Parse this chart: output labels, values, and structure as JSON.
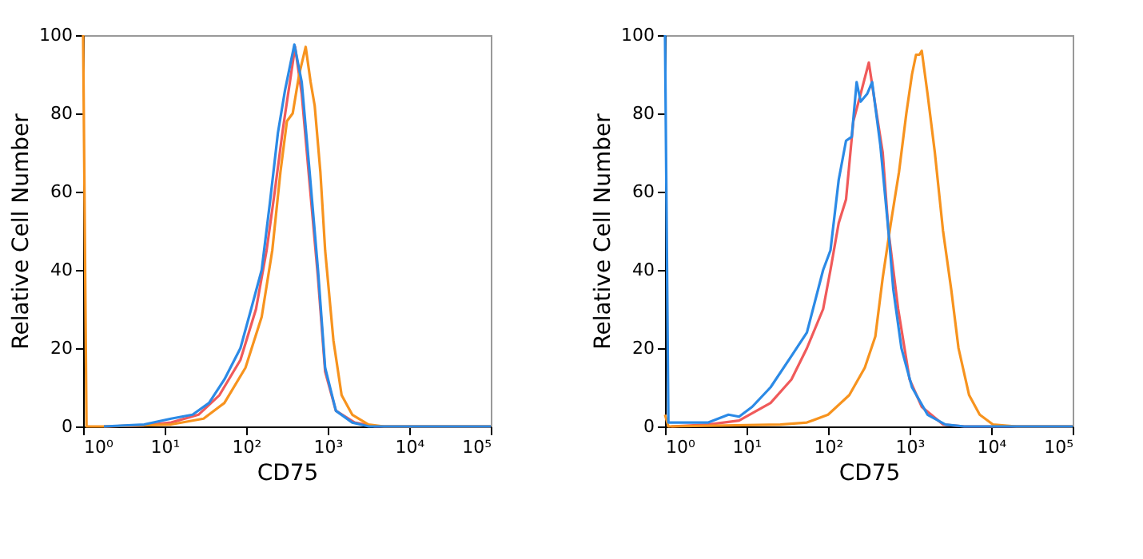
{
  "chart_data": [
    {
      "type": "line",
      "xlabel": "CD75",
      "ylabel": "Relative Cell Number",
      "log": "x",
      "grid": false,
      "legend": false,
      "marker": "none",
      "line_style": "solid",
      "xlim": [
        1,
        100000
      ],
      "ylim": [
        0,
        100
      ],
      "xticks": [
        {
          "value": 1,
          "label": "10⁰"
        },
        {
          "value": 10,
          "label": "10¹"
        },
        {
          "value": 100,
          "label": "10²"
        },
        {
          "value": 1000,
          "label": "10³"
        },
        {
          "value": 10000,
          "label": "10⁴"
        },
        {
          "value": 100000,
          "label": "10⁵"
        }
      ],
      "yticks": [
        0,
        20,
        40,
        60,
        80,
        100
      ],
      "series": [
        {
          "color": "#f05a5a",
          "x": [
            1.8,
            5.6,
            12,
            26,
            47,
            85,
            132,
            178,
            224,
            282,
            355,
            398,
            480,
            600,
            760,
            930,
            1260,
            2140,
            3800,
            100000
          ],
          "values": [
            0,
            0.3,
            1,
            3,
            8,
            17,
            30,
            45,
            60,
            76,
            90,
            97,
            85,
            62,
            38,
            14,
            4,
            1,
            0,
            0
          ]
        },
        {
          "color": "#f7931e",
          "x": [
            1,
            1.1,
            1.8,
            12,
            30,
            54,
            98,
            155,
            209,
            263,
            316,
            372,
            447,
            537,
            617,
            692,
            813,
            930,
            1175,
            1480,
            2000,
            3160,
            4900,
            100000
          ],
          "values": [
            100,
            0,
            0,
            0.5,
            2,
            6,
            15,
            28,
            45,
            65,
            78,
            80,
            90,
            97,
            88,
            82,
            65,
            45,
            22,
            8,
            3,
            0.5,
            0,
            0
          ]
        },
        {
          "color": "#2b8ae6",
          "x": [
            1.8,
            5.6,
            12,
            22,
            35,
            54,
            85,
            115,
            155,
            195,
            245,
            300,
            390,
            480,
            600,
            760,
            930,
            1260,
            2000,
            3200,
            100000
          ],
          "values": [
            0,
            0.5,
            2,
            3,
            6,
            12,
            20,
            30,
            40,
            57,
            75,
            86,
            97.6,
            88,
            65,
            40,
            15,
            4,
            1,
            0,
            0
          ]
        }
      ]
    },
    {
      "type": "line",
      "xlabel": "CD75",
      "ylabel": "Relative Cell Number",
      "log": "x",
      "grid": false,
      "legend": false,
      "marker": "none",
      "line_style": "solid",
      "xlim": [
        1,
        100000
      ],
      "ylim": [
        0,
        100
      ],
      "xticks": [
        {
          "value": 1,
          "label": "10⁰"
        },
        {
          "value": 10,
          "label": "10¹"
        },
        {
          "value": 100,
          "label": "10²"
        },
        {
          "value": 1000,
          "label": "10³"
        },
        {
          "value": 10000,
          "label": "10⁴"
        },
        {
          "value": 100000,
          "label": "10⁵"
        }
      ],
      "yticks": [
        0,
        20,
        40,
        60,
        80,
        100
      ],
      "series": [
        {
          "color": "#f05a5a",
          "x": [
            1.2,
            3.4,
            8.1,
            19.7,
            35.5,
            55,
            87,
            107,
            135,
            166,
            204,
            251,
            316,
            380,
            468,
            550,
            724,
            1000,
            1410,
            2570,
            4680,
            100000
          ],
          "values": [
            0,
            0.5,
            1.5,
            6,
            12,
            20,
            30,
            40,
            52,
            58,
            78,
            85,
            93,
            82,
            70,
            50,
            30,
            12,
            5,
            0.5,
            0,
            0
          ]
        },
        {
          "color": "#f7931e",
          "x": [
            1,
            1.1,
            26,
            55,
            100,
            182,
            282,
            380,
            468,
            589,
            741,
            912,
            1070,
            1200,
            1320,
            1410,
            1660,
            2040,
            2570,
            3240,
            3980,
            5370,
            7240,
            10500,
            20400,
            100000
          ],
          "values": [
            3,
            0,
            0.5,
            1,
            3,
            8,
            15,
            23,
            38,
            52,
            65,
            80,
            90,
            95,
            95,
            96,
            85,
            70,
            50,
            35,
            20,
            8,
            3,
            0.5,
            0,
            0
          ]
        },
        {
          "color": "#2b8ae6",
          "x": [
            1,
            1.1,
            3.4,
            6.0,
            8.1,
            11.7,
            19.7,
            35.5,
            55,
            87,
            107,
            135,
            166,
            195,
            224,
            251,
            302,
            347,
            437,
            550,
            631,
            794,
            1070,
            1660,
            2750,
            4680,
            100000
          ],
          "values": [
            100,
            1,
            1,
            3,
            2.5,
            5,
            10,
            18,
            24,
            40,
            45,
            63,
            73,
            74,
            88,
            83,
            85,
            88,
            72,
            50,
            35,
            20,
            10,
            3,
            0.5,
            0,
            0
          ]
        }
      ]
    }
  ]
}
